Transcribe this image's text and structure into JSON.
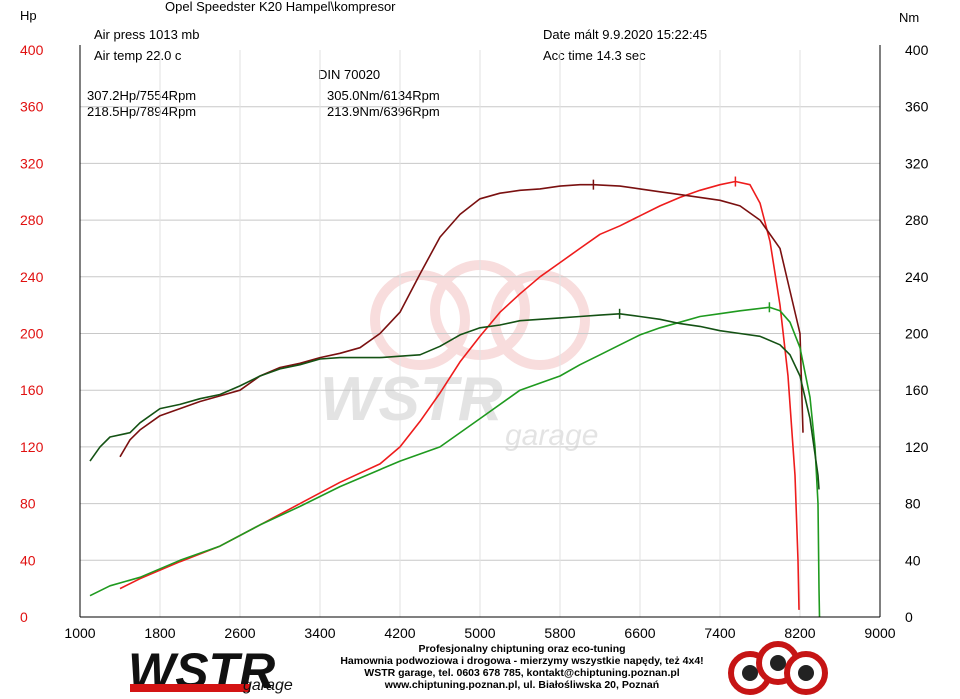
{
  "header": {
    "y_left_unit": "Hp",
    "y_right_unit": "Nm",
    "title": "Opel Speedster K20 Hampel\\kompresor",
    "air_press": "Air press  1013 mb",
    "air_temp": "Air temp  22.0 c",
    "date": "Date mált 9.9.2020 15:22:45",
    "acc_time": "Acc time  14.3 sec",
    "standard": "DIN 70020"
  },
  "legend": {
    "red_power": "307.2Hp/7554Rpm",
    "red_torque": "305.0Nm/6134Rpm",
    "green_power": "218.5Hp/7894Rpm",
    "green_torque": "213.9Nm/6396Rpm"
  },
  "footer": {
    "line1": "Profesjonalny chiptuning oraz eco-tuning",
    "line2": "Hamownia podwoziowa i drogowa - mierzymy wszystkie napędy, też 4x4!",
    "line3": "WSTR garage, tel. 0603 678 785, kontakt@chiptuning.poznan.pl",
    "line4": "www.chiptuning.poznan.pl, ul. Białośliwska 20, Poznań"
  },
  "logo": {
    "text": "WSTR",
    "subtext": "garage"
  },
  "colors": {
    "red_power": "#ee1c1c",
    "red_torque": "#7a1010",
    "green_power": "#1f9a1f",
    "green_torque": "#145214",
    "left_axis": "#e01010"
  },
  "chart_data": {
    "type": "line",
    "xlabel": "",
    "ylabel_left": "Hp",
    "ylabel_right": "Nm",
    "xlim": [
      1000,
      9000
    ],
    "ylim": [
      0,
      400
    ],
    "x_ticks": [
      1000,
      1800,
      2600,
      3400,
      4200,
      5000,
      5800,
      6600,
      7400,
      8200,
      9000
    ],
    "y_ticks": [
      0,
      40,
      80,
      120,
      160,
      200,
      240,
      280,
      320,
      360,
      400
    ],
    "grid": true,
    "series": [
      {
        "axis": "Hp",
        "color": "#ee1c1c",
        "peak_label": "307.2Hp/7554Rpm",
        "peak": [
          7554,
          307.2
        ],
        "points": [
          [
            1400,
            20
          ],
          [
            1600,
            27
          ],
          [
            2000,
            39
          ],
          [
            2400,
            50
          ],
          [
            2800,
            65
          ],
          [
            3200,
            80
          ],
          [
            3600,
            95
          ],
          [
            4000,
            108
          ],
          [
            4200,
            120
          ],
          [
            4400,
            138
          ],
          [
            4600,
            158
          ],
          [
            4800,
            180
          ],
          [
            5000,
            198
          ],
          [
            5200,
            215
          ],
          [
            5400,
            228
          ],
          [
            5600,
            240
          ],
          [
            5800,
            250
          ],
          [
            6000,
            260
          ],
          [
            6200,
            270
          ],
          [
            6400,
            276
          ],
          [
            6600,
            283
          ],
          [
            6800,
            290
          ],
          [
            7000,
            296
          ],
          [
            7200,
            301
          ],
          [
            7400,
            305
          ],
          [
            7554,
            307.2
          ],
          [
            7700,
            305
          ],
          [
            7800,
            292
          ],
          [
            7900,
            265
          ],
          [
            8000,
            220
          ],
          [
            8080,
            170
          ],
          [
            8150,
            100
          ],
          [
            8180,
            40
          ],
          [
            8190,
            5
          ]
        ]
      },
      {
        "axis": "Nm",
        "color": "#7a1010",
        "peak_label": "305.0Nm/6134Rpm",
        "peak": [
          6134,
          305.0
        ],
        "points": [
          [
            1400,
            113
          ],
          [
            1500,
            125
          ],
          [
            1600,
            132
          ],
          [
            1800,
            142
          ],
          [
            2000,
            147
          ],
          [
            2200,
            152
          ],
          [
            2400,
            156
          ],
          [
            2600,
            160
          ],
          [
            2800,
            170
          ],
          [
            3000,
            176
          ],
          [
            3200,
            179
          ],
          [
            3400,
            183
          ],
          [
            3600,
            186
          ],
          [
            3800,
            190
          ],
          [
            4000,
            200
          ],
          [
            4200,
            215
          ],
          [
            4400,
            242
          ],
          [
            4600,
            268
          ],
          [
            4800,
            284
          ],
          [
            5000,
            295
          ],
          [
            5200,
            299
          ],
          [
            5400,
            301
          ],
          [
            5600,
            302
          ],
          [
            5800,
            304
          ],
          [
            6000,
            305
          ],
          [
            6134,
            305
          ],
          [
            6400,
            304
          ],
          [
            6600,
            302
          ],
          [
            6800,
            300
          ],
          [
            7000,
            298
          ],
          [
            7200,
            296
          ],
          [
            7400,
            294
          ],
          [
            7600,
            290
          ],
          [
            7800,
            280
          ],
          [
            8000,
            260
          ],
          [
            8100,
            230
          ],
          [
            8200,
            200
          ],
          [
            8230,
            130
          ]
        ]
      },
      {
        "axis": "Hp",
        "color": "#1f9a1f",
        "peak_label": "218.5Hp/7894Rpm",
        "peak": [
          7894,
          218.5
        ],
        "points": [
          [
            1100,
            15
          ],
          [
            1300,
            22
          ],
          [
            1600,
            28
          ],
          [
            2000,
            40
          ],
          [
            2400,
            50
          ],
          [
            2800,
            65
          ],
          [
            3200,
            78
          ],
          [
            3600,
            92
          ],
          [
            4000,
            104
          ],
          [
            4200,
            110
          ],
          [
            4600,
            120
          ],
          [
            5000,
            140
          ],
          [
            5400,
            160
          ],
          [
            5800,
            170
          ],
          [
            6000,
            178
          ],
          [
            6200,
            185
          ],
          [
            6400,
            192
          ],
          [
            6600,
            199
          ],
          [
            6800,
            204
          ],
          [
            7000,
            208
          ],
          [
            7200,
            212
          ],
          [
            7400,
            214
          ],
          [
            7600,
            216
          ],
          [
            7894,
            218.5
          ],
          [
            8000,
            216
          ],
          [
            8100,
            208
          ],
          [
            8200,
            190
          ],
          [
            8300,
            155
          ],
          [
            8350,
            120
          ],
          [
            8380,
            80
          ],
          [
            8390,
            20
          ],
          [
            8395,
            0
          ]
        ]
      },
      {
        "axis": "Nm",
        "color": "#145214",
        "peak_label": "213.9Nm/6396Rpm",
        "peak": [
          6396,
          213.9
        ],
        "points": [
          [
            1100,
            110
          ],
          [
            1200,
            120
          ],
          [
            1300,
            127
          ],
          [
            1500,
            130
          ],
          [
            1600,
            137
          ],
          [
            1800,
            147
          ],
          [
            2000,
            150
          ],
          [
            2200,
            154
          ],
          [
            2400,
            157
          ],
          [
            2600,
            163
          ],
          [
            2800,
            170
          ],
          [
            3000,
            175
          ],
          [
            3200,
            178
          ],
          [
            3400,
            182
          ],
          [
            3600,
            183
          ],
          [
            3800,
            183
          ],
          [
            4000,
            183
          ],
          [
            4200,
            184
          ],
          [
            4400,
            185
          ],
          [
            4600,
            191
          ],
          [
            4800,
            199
          ],
          [
            5000,
            204
          ],
          [
            5200,
            206
          ],
          [
            5400,
            209
          ],
          [
            5600,
            210
          ],
          [
            5800,
            211
          ],
          [
            6000,
            212
          ],
          [
            6200,
            213
          ],
          [
            6396,
            213.9
          ],
          [
            6600,
            212
          ],
          [
            6800,
            210
          ],
          [
            7000,
            207
          ],
          [
            7200,
            205
          ],
          [
            7400,
            202
          ],
          [
            7600,
            200
          ],
          [
            7800,
            198
          ],
          [
            8000,
            192
          ],
          [
            8100,
            185
          ],
          [
            8200,
            170
          ],
          [
            8300,
            140
          ],
          [
            8380,
            100
          ],
          [
            8390,
            90
          ]
        ]
      }
    ]
  }
}
